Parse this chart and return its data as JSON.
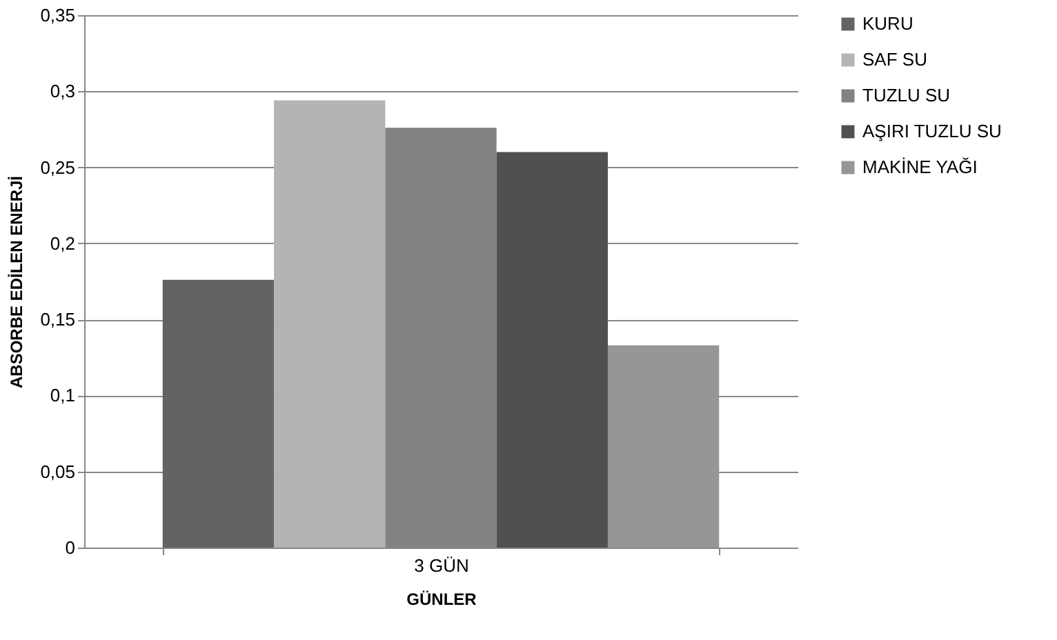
{
  "chart_data": {
    "type": "bar",
    "xlabel": "GÜNLER",
    "ylabel": "ABSORBE EDİLEN ENERJİ",
    "categories": [
      "3 GÜN"
    ],
    "series": [
      {
        "name": "KURU",
        "color": "#636363",
        "values": [
          0.176
        ]
      },
      {
        "name": "SAF SU",
        "color": "#b4b4b4",
        "values": [
          0.294
        ]
      },
      {
        "name": "TUZLU SU",
        "color": "#828282",
        "values": [
          0.276
        ]
      },
      {
        "name": "AŞIRI TUZLU SU",
        "color": "#505050",
        "values": [
          0.26
        ]
      },
      {
        "name": "MAKİNE YAĞI",
        "color": "#969696",
        "values": [
          0.133
        ]
      }
    ],
    "ylim": [
      0,
      0.35
    ],
    "yticks": [
      {
        "value": 0,
        "label": "0"
      },
      {
        "value": 0.05,
        "label": "0,05"
      },
      {
        "value": 0.1,
        "label": "0,1"
      },
      {
        "value": 0.15,
        "label": "0,15"
      },
      {
        "value": 0.2,
        "label": "0,2"
      },
      {
        "value": 0.25,
        "label": "0,25"
      },
      {
        "value": 0.3,
        "label": "0,3"
      },
      {
        "value": 0.35,
        "label": "0,35"
      }
    ],
    "grid": "y",
    "legend": "right"
  }
}
